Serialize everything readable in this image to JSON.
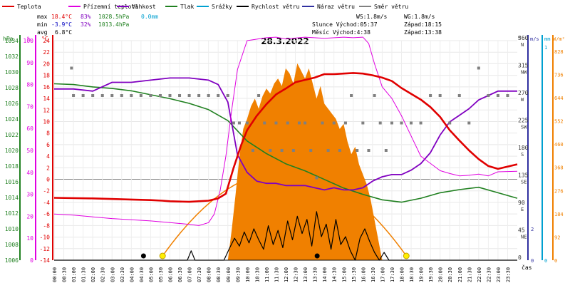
{
  "chart_data": {
    "type": "line",
    "title": "28.3.2022",
    "legend": [
      {
        "label": "Teplota",
        "color": "#e00000"
      },
      {
        "label": "Přízemní teplota",
        "color": "#e000e0"
      },
      {
        "label": "Vlhkost",
        "color": "#8000c0"
      },
      {
        "label": "Tlak",
        "color": "#208020"
      },
      {
        "label": "Srážky",
        "color": "#00a0d0"
      },
      {
        "label": "Rychlost větru",
        "color": "#000000"
      },
      {
        "label": "Náraz větru",
        "color": "#3030a0"
      },
      {
        "label": "Směr větru",
        "color": "#808080"
      }
    ],
    "stats": {
      "max_label": "max",
      "min_label": "min",
      "avg_label": "avg",
      "max_temp": "18.4°C",
      "max_hum": "83%",
      "max_press": "1028.5hPa",
      "max_rain": "0.0mm",
      "min_temp": "-3.9°C",
      "min_hum": "32%",
      "min_press": "1013.4hPa",
      "avg_temp": "6.8°C",
      "ws": "WS:1.8m/s",
      "wg": "WG:1.8m/s",
      "sun": "Slunce Východ:05:37",
      "sun_set": "Západ:18:15",
      "moon": "Měsíc  Východ:4:38",
      "moon_set": "Západ:13:38"
    },
    "axis_units": {
      "hpa": "hPa",
      "pct": "%",
      "degc": "°C",
      "deg": "°",
      "ms": "m/s",
      "mm": "mm",
      "wm2": "W/m²",
      "time": "čas"
    },
    "temp_ticks": [
      "24",
      "22",
      "20",
      "18",
      "16",
      "14",
      "12",
      "10",
      "8",
      "6",
      "4",
      "2",
      "0",
      "-2",
      "-4",
      "-6",
      "-8",
      "-10",
      "-12",
      "-14"
    ],
    "hum_ticks": [
      "100",
      "90",
      "80",
      "70",
      "60",
      "50",
      "40",
      "30",
      "20",
      "10",
      "0"
    ],
    "press_ticks": [
      "1034",
      "1032",
      "1030",
      "1028",
      "1026",
      "1024",
      "1022",
      "1020",
      "1018",
      "1016",
      "1014",
      "1012",
      "1010",
      "1008",
      "1006"
    ],
    "dir_ticks": [
      {
        "deg": "360",
        "label": "N"
      },
      {
        "deg": "315",
        "label": "NW"
      },
      {
        "deg": "270",
        "label": "W"
      },
      {
        "deg": "225",
        "label": "SW"
      },
      {
        "deg": "180",
        "label": "S"
      },
      {
        "deg": "135",
        "label": "SE"
      },
      {
        "deg": "90",
        "label": "E"
      },
      {
        "deg": "45",
        "label": "NE"
      },
      {
        "deg": "0",
        "label": ""
      }
    ],
    "ms_ticks": [
      "2",
      "0"
    ],
    "mm_ticks": [
      "1",
      "0"
    ],
    "solar_ticks": [
      "828",
      "736",
      "644",
      "552",
      "460",
      "368",
      "276",
      "184",
      "92",
      "0"
    ],
    "x_ticks": [
      "00:00",
      "00:30",
      "01:00",
      "01:30",
      "02:00",
      "02:30",
      "03:00",
      "03:30",
      "04:00",
      "04:30",
      "05:00",
      "05:30",
      "06:00",
      "06:30",
      "07:00",
      "07:30",
      "08:00",
      "08:30",
      "09:00",
      "09:30",
      "10:00",
      "10:30",
      "11:00",
      "11:30",
      "12:00",
      "12:30",
      "13:00",
      "13:30",
      "14:00",
      "14:30",
      "15:00",
      "15:30",
      "16:00",
      "16:30",
      "17:00",
      "17:30",
      "18:00",
      "18:30",
      "19:00",
      "19:30",
      "20:00",
      "20:30",
      "21:00",
      "21:30",
      "22:00",
      "22:30",
      "23:00",
      "23:30"
    ],
    "series": [
      {
        "name": "Teplota",
        "unit": "°C",
        "x_hours": [
          0,
          2,
          4,
          5,
          5.6,
          6,
          7,
          8,
          8.5,
          8.9,
          9.3,
          9.7,
          10,
          10.5,
          11,
          11.5,
          12,
          12.5,
          13,
          13.5,
          14,
          14.5,
          15,
          15.5,
          16,
          16.5,
          17,
          17.5,
          18,
          18.5,
          19,
          19.5,
          20,
          20.5,
          21,
          21.5,
          22,
          22.5,
          23,
          24
        ],
        "values": [
          -3.2,
          -3.3,
          -3.5,
          -3.6,
          -3.7,
          -3.8,
          -3.9,
          -3.7,
          -3.3,
          -2.5,
          2,
          6,
          8.5,
          11,
          13,
          14.7,
          15.7,
          16.8,
          17.2,
          17.6,
          18.2,
          18.2,
          18.3,
          18.4,
          18.3,
          18,
          17.6,
          17,
          15.8,
          14.8,
          13.8,
          12.5,
          10.8,
          8.5,
          6.7,
          5,
          3.5,
          2.3,
          1.8,
          2.6
        ]
      },
      {
        "name": "Přízemní teplota",
        "unit": "°C",
        "x_hours": [
          0,
          1,
          2,
          3,
          4,
          5,
          6,
          7,
          7.5,
          8,
          8.3,
          8.6,
          8.9,
          9.2,
          9.5,
          10,
          11,
          11.5,
          12,
          13,
          14,
          15,
          15.5,
          16,
          16.3,
          16.6,
          17,
          17.5,
          18,
          18.5,
          19,
          20,
          20.5,
          21,
          21.5,
          22,
          22.5,
          23,
          24
        ],
        "values": [
          -6,
          -6.2,
          -6.5,
          -6.8,
          -7,
          -7.2,
          -7.5,
          -7.8,
          -8,
          -7.5,
          -6,
          -2,
          4,
          12,
          19,
          24,
          24.5,
          24.6,
          24.3,
          24.6,
          24.4,
          24.6,
          24.5,
          24.6,
          23.5,
          20,
          16,
          14,
          11,
          7.5,
          4,
          1.5,
          1,
          0.6,
          0.7,
          0.9,
          0.6,
          1.3,
          1.4
        ]
      },
      {
        "name": "Vlhkost",
        "unit": "%",
        "x_hours": [
          0,
          1,
          2,
          2.5,
          3,
          4,
          5,
          6,
          7,
          8,
          8.5,
          9,
          9.5,
          10,
          10.5,
          11,
          11.5,
          12,
          12.5,
          13,
          13.5,
          14,
          14.5,
          15,
          15.5,
          16,
          16.5,
          17,
          17.5,
          18,
          18.5,
          19,
          19.5,
          20,
          20.5,
          21,
          21.5,
          22,
          22.5,
          23,
          24
        ],
        "values": [
          78,
          78,
          77,
          79,
          81,
          81,
          82,
          83,
          83,
          82,
          80,
          72,
          48,
          40,
          36,
          35,
          35,
          34,
          34,
          34,
          33,
          32,
          33,
          32,
          32,
          33,
          36,
          38,
          39,
          39,
          41,
          44,
          49,
          57,
          63,
          66,
          69,
          73,
          75,
          77,
          77
        ]
      },
      {
        "name": "Tlak",
        "unit": "hPa",
        "x_hours": [
          0,
          1,
          2,
          3,
          4,
          5,
          6,
          7,
          8,
          9,
          10,
          11,
          12,
          13,
          14,
          15,
          16,
          17,
          18,
          19,
          20,
          21,
          22,
          23,
          24
        ],
        "values": [
          1028.5,
          1028.4,
          1028.1,
          1027.9,
          1027.6,
          1027.1,
          1026.6,
          1026.0,
          1025.2,
          1023.8,
          1021.2,
          1019.6,
          1018.3,
          1017.4,
          1016.3,
          1015.2,
          1014.4,
          1013.7,
          1013.4,
          1013.9,
          1014.6,
          1015.0,
          1015.3,
          1014.6,
          1013.9
        ]
      },
      {
        "name": "Rychlost větru",
        "unit": "m/s",
        "x_hours": [
          0,
          6.9,
          7.1,
          7.3,
          8.8,
          9.1,
          9.35,
          9.6,
          9.85,
          10.1,
          10.35,
          10.6,
          10.85,
          11.1,
          11.35,
          11.6,
          11.85,
          12.1,
          12.35,
          12.6,
          12.85,
          13.1,
          13.35,
          13.6,
          13.85,
          14.1,
          14.35,
          14.6,
          14.85,
          15.1,
          15.35,
          15.6,
          15.85,
          16.1,
          16.35,
          16.6,
          16.85,
          17.1,
          17.35,
          17.6,
          17.85,
          24
        ],
        "values": [
          0,
          0,
          0.6,
          0,
          0,
          0.8,
          1.4,
          0.9,
          1.8,
          1.1,
          2.0,
          1.3,
          0.7,
          2.2,
          1.0,
          1.9,
          0.8,
          2.5,
          1.3,
          2.8,
          1.7,
          2.6,
          0.9,
          3.1,
          1.5,
          2.3,
          0.7,
          2.6,
          1.0,
          1.5,
          0.6,
          0,
          1.4,
          2.0,
          1.2,
          0.5,
          0,
          0.5,
          0,
          0,
          0,
          0
        ]
      },
      {
        "name": "Směr větru",
        "unit": "°",
        "x_hours": [
          0.9,
          1,
          1.5,
          2,
          2.5,
          3,
          3.5,
          4,
          4.5,
          5,
          5.5,
          6,
          6.5,
          7,
          7.5,
          8,
          8.5,
          9,
          9.3,
          9.6,
          10,
          10.3,
          10.6,
          10.9,
          11.2,
          11.5,
          11.8,
          12.1,
          12.4,
          12.7,
          13,
          13.3,
          13.6,
          13.9,
          14.2,
          14.5,
          14.8,
          15.1,
          15.4,
          15.7,
          16,
          16.3,
          16.6,
          16.9,
          17.2,
          17.5,
          18,
          18.5,
          19,
          19.5,
          20,
          20.5,
          21,
          21.5,
          22,
          22.5,
          23,
          23.5
        ],
        "values": [
          315,
          270,
          270,
          270,
          270,
          270,
          270,
          270,
          270,
          270,
          270,
          270,
          270,
          270,
          270,
          270,
          270,
          270,
          225,
          225,
          225,
          180,
          270,
          225,
          180,
          225,
          180,
          225,
          180,
          225,
          225,
          180,
          135,
          225,
          180,
          225,
          180,
          225,
          270,
          180,
          225,
          180,
          270,
          225,
          180,
          225,
          225,
          225,
          225,
          270,
          270,
          225,
          270,
          225,
          315,
          270,
          270,
          270
        ]
      }
    ],
    "solar": {
      "unit": "W/m²",
      "x_hours": [
        9.0,
        9.2,
        9.4,
        9.6,
        9.8,
        10.0,
        10.2,
        10.4,
        10.6,
        10.8,
        11.0,
        11.2,
        11.4,
        11.6,
        11.8,
        12.0,
        12.2,
        12.4,
        12.6,
        12.8,
        13.0,
        13.2,
        13.4,
        13.6,
        13.8,
        14.0,
        14.2,
        14.4,
        14.6,
        14.8,
        15.0,
        15.2,
        15.4,
        15.6,
        15.8,
        16.0,
        16.2,
        16.4,
        16.6,
        16.8,
        17.0
      ],
      "values": [
        0,
        120,
        260,
        410,
        520,
        560,
        610,
        640,
        600,
        650,
        680,
        660,
        700,
        720,
        690,
        760,
        740,
        700,
        780,
        750,
        720,
        760,
        700,
        640,
        690,
        620,
        600,
        580,
        560,
        520,
        540,
        470,
        420,
        450,
        380,
        340,
        300,
        240,
        160,
        80,
        0
      ]
    },
    "sun_path": {
      "rise_hours": 5.62,
      "set_hours": 18.25,
      "peak_hours": 11.93
    },
    "markers": [
      {
        "type": "moonrise",
        "x_hours": 4.63
      },
      {
        "type": "moonset",
        "x_hours": 13.63
      }
    ],
    "x_range": [
      0,
      24
    ],
    "temp_range": [
      -14,
      24
    ],
    "hum_range": [
      0,
      100
    ],
    "press_range": [
      1006,
      1034
    ],
    "dir_range": [
      0,
      360
    ],
    "wind_range": [
      0,
      14
    ],
    "solar_range": [
      0,
      870
    ]
  }
}
